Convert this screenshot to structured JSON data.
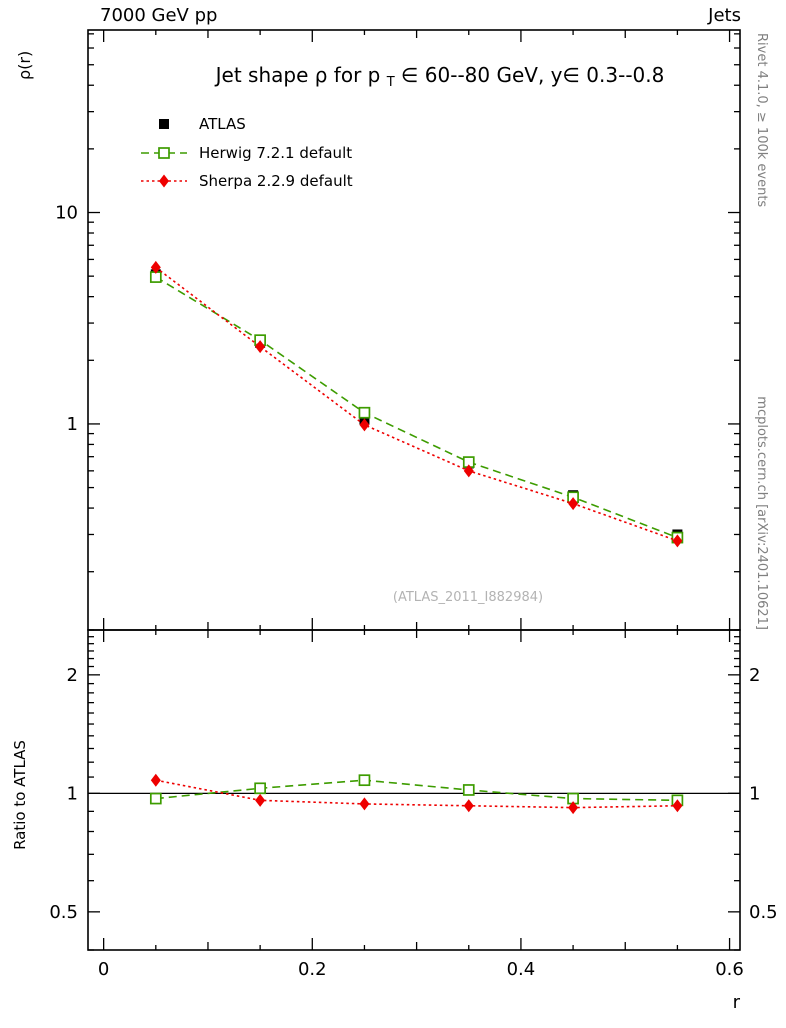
{
  "header": {
    "left": "7000 GeV pp",
    "right": "Jets"
  },
  "side_text": {
    "top_right": "Rivet 4.1.0, ≥ 100k events",
    "bottom_right": "mcplots.cern.ch [arXiv:2401.10621]"
  },
  "watermark": "(ATLAS_2011_I882984)",
  "title_parts": {
    "pre": "Jet shape ρ for p",
    "sub": "T",
    "post": " ∈ 60--80 GeV, y∈ 0.3--0.8"
  },
  "axis_labels": {
    "main_y": "ρ(r)",
    "ratio_y": "Ratio to ATLAS",
    "x": "r"
  },
  "chart_data": {
    "type": "line",
    "title": "Jet shape ρ for p_T ∈ 60--80 GeV, y ∈ 0.3--0.8",
    "xlabel": "r",
    "ylabel": "ρ(r)",
    "ratio_ylabel": "Ratio to ATLAS",
    "x": [
      0.05,
      0.15,
      0.25,
      0.35,
      0.45,
      0.55
    ],
    "series": [
      {
        "name": "ATLAS",
        "color": "#000000",
        "marker": "square-filled",
        "line": "none",
        "is_reference": true,
        "values": [
          5.1,
          2.42,
          1.05,
          0.65,
          0.46,
          0.3
        ],
        "ratio": [
          1,
          1,
          1,
          1,
          1,
          1
        ]
      },
      {
        "name": "Herwig 7.2.1 default",
        "color": "#3d9c00",
        "marker": "square-open",
        "line": "dashed",
        "is_reference": false,
        "values": [
          4.95,
          2.49,
          1.13,
          0.66,
          0.45,
          0.29
        ],
        "ratio": [
          0.97,
          1.03,
          1.08,
          1.02,
          0.97,
          0.96
        ]
      },
      {
        "name": "Sherpa 2.2.9 default",
        "color": "#ee0000",
        "marker": "diamond-filled",
        "line": "dotted",
        "is_reference": false,
        "values": [
          5.5,
          2.32,
          0.99,
          0.6,
          0.42,
          0.28
        ],
        "ratio": [
          1.08,
          0.96,
          0.94,
          0.93,
          0.92,
          0.93
        ]
      }
    ],
    "xlim": [
      -0.015,
      0.61
    ],
    "main_ylim": [
      0.106,
      73
    ],
    "ratio_ylim": [
      0.4,
      2.6
    ],
    "main_yscale": "log",
    "ratio_yscale": "log",
    "xticks": {
      "major": [
        0,
        0.2,
        0.4,
        0.6
      ],
      "labels": [
        "0",
        "0.2",
        "0.4",
        "0.6"
      ],
      "minor_step": 0.05
    },
    "main_yticks": {
      "major": [
        1,
        10
      ],
      "labels": [
        "1",
        "10"
      ]
    },
    "ratio_yticks": {
      "major": [
        0.5,
        1,
        2
      ],
      "labels": [
        "0.5",
        "1",
        "2"
      ]
    },
    "reference_line": 1,
    "legend_position": "upper-left-inside",
    "grid": false
  }
}
